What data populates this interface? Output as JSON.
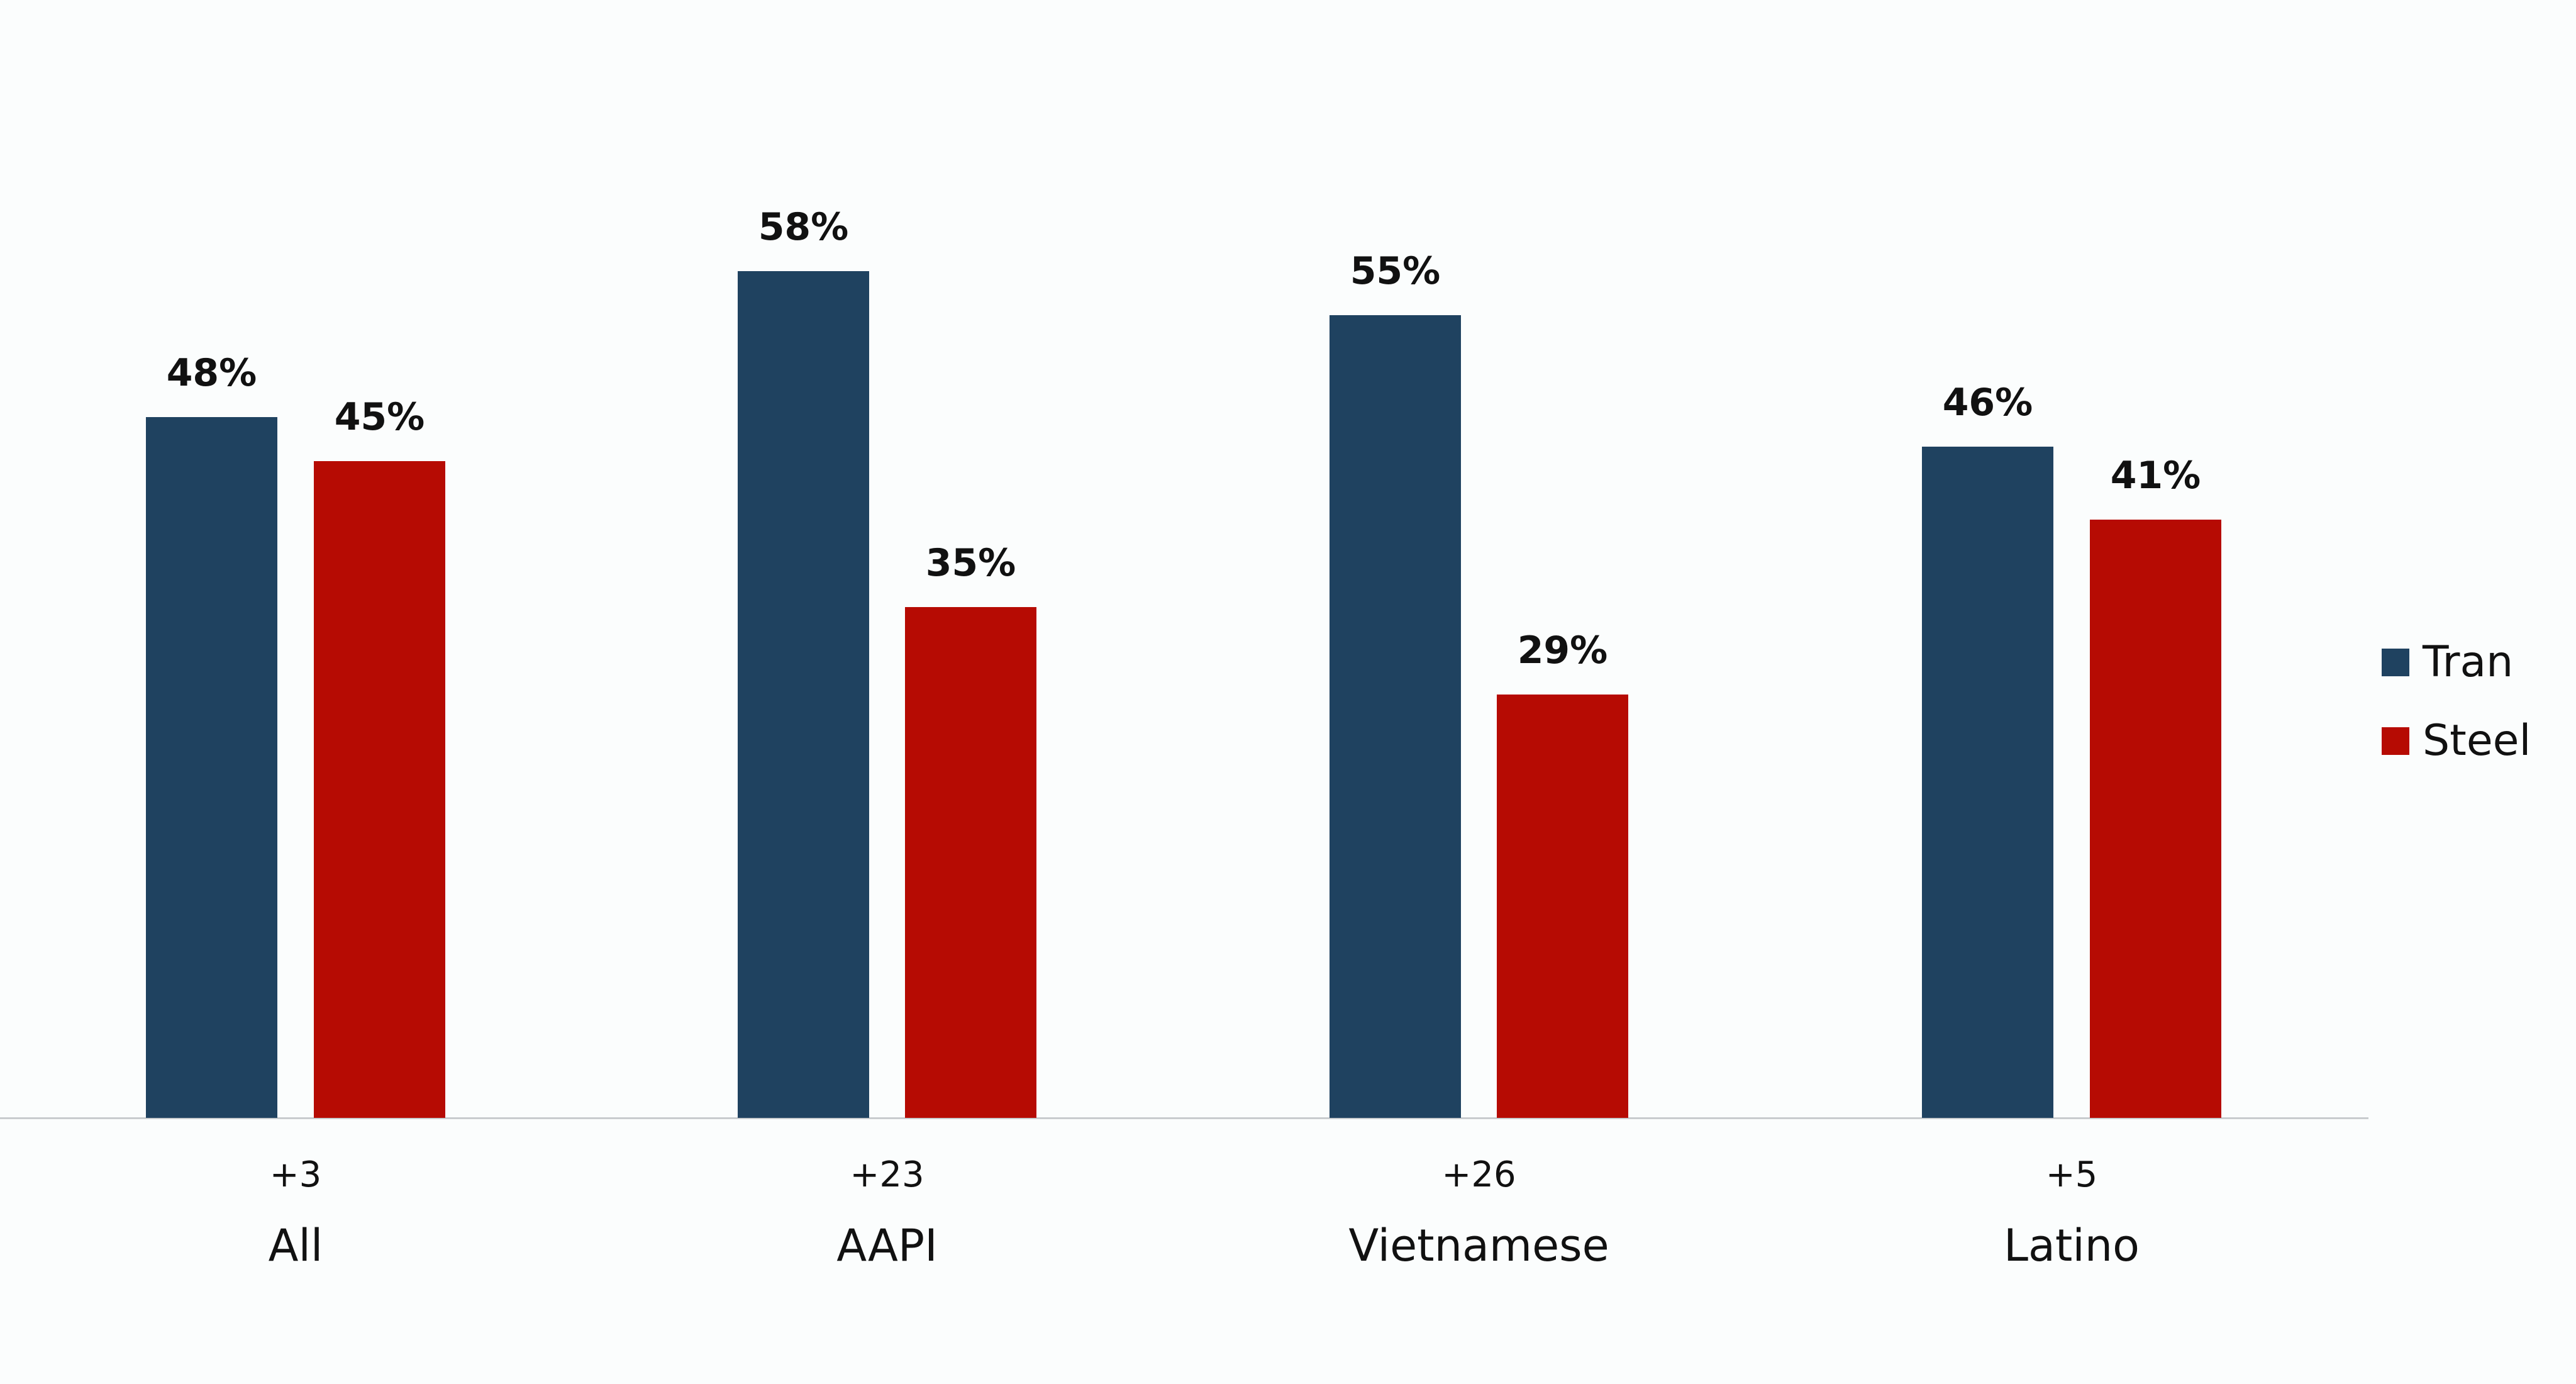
{
  "chart_data": {
    "type": "bar",
    "title": "",
    "xlabel": "",
    "ylabel": "",
    "ylim": [
      0,
      76
    ],
    "grid": false,
    "legend_position": "right",
    "categories": [
      "All",
      "AAPI",
      "Vietnamese",
      "Latino"
    ],
    "category_margins": [
      "+3",
      "+23",
      "+26",
      "+5"
    ],
    "series": [
      {
        "name": "Tran",
        "color": "#1f4260",
        "values": [
          48,
          58,
          55,
          46
        ],
        "labels": [
          "48%",
          "58%",
          "55%",
          "46%"
        ]
      },
      {
        "name": "Steel",
        "color": "#b60b03",
        "values": [
          45,
          35,
          29,
          41
        ],
        "labels": [
          "45%",
          "35%",
          "29%",
          "41%"
        ]
      }
    ]
  },
  "legend": {
    "items": [
      {
        "label": "Tran",
        "color": "#1f4260"
      },
      {
        "label": "Steel",
        "color": "#b60b03"
      }
    ]
  },
  "colors": {
    "background": "#fbfdfd",
    "axis": "#c9cccf",
    "text": "#111111"
  }
}
